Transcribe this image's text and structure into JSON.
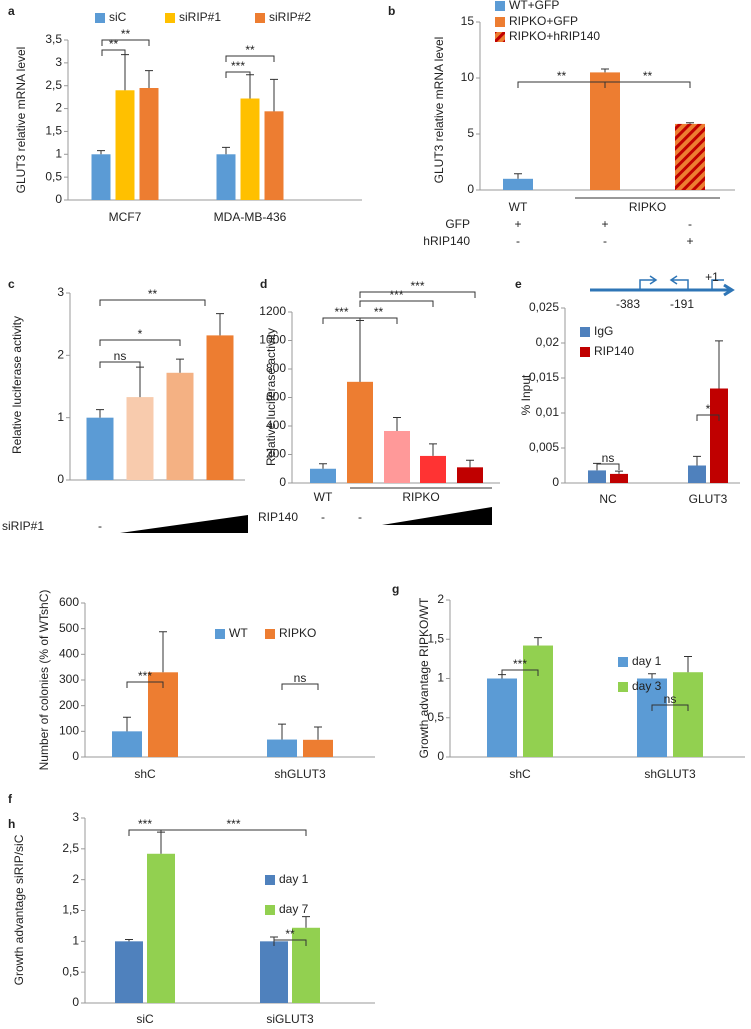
{
  "chart_data": [
    {
      "type": "bar",
      "panel": "a",
      "ylabel": "GLUT3 relative mRNA level",
      "categories": [
        "MCF7",
        "MDA-MB-436"
      ],
      "series": [
        {
          "name": "siC",
          "color": "#5b9bd5",
          "values": [
            1.0,
            1.0
          ],
          "errors": [
            0.08,
            0.15
          ]
        },
        {
          "name": "siRIP#1",
          "color": "#ffc000",
          "values": [
            2.4,
            2.22
          ],
          "errors": [
            0.78,
            0.52
          ]
        },
        {
          "name": "siRIP#2",
          "color": "#ed7d31",
          "values": [
            2.45,
            1.94
          ],
          "errors": [
            0.38,
            0.7
          ]
        }
      ],
      "ylim": [
        0,
        3.5
      ],
      "yticks": [
        0,
        {
          "value": 0.5,
          "label": "0,5"
        },
        1,
        {
          "value": 1.5,
          "label": "1,5"
        },
        2,
        {
          "value": 2.5,
          "label": "2,5"
        },
        3,
        {
          "value": 3.5,
          "label": "3,5"
        }
      ],
      "annotations": [
        "**",
        "**",
        "***",
        "**"
      ]
    },
    {
      "type": "bar",
      "panel": "b",
      "ylabel": "GLUT3 relative mRNA level",
      "categories": [
        "WT",
        null,
        null
      ],
      "group_labels": [
        "RIPKO"
      ],
      "values": [
        1.0,
        10.5,
        5.9
      ],
      "errors": [
        0.45,
        0.3,
        0.1
      ],
      "colors": [
        "#5b9bd5",
        "#ed7d31",
        "#ed7d31"
      ],
      "hatch": [
        false,
        false,
        true
      ],
      "legend": [
        "WT+GFP",
        "RIPKO+GFP",
        "RIPKO+hRIP140"
      ],
      "rows": [
        {
          "name": "GFP",
          "values": [
            "+",
            "+",
            "-"
          ]
        },
        {
          "name": "hRIP140",
          "values": [
            "-",
            "-",
            "+"
          ]
        }
      ],
      "ylim": [
        0,
        15
      ],
      "yticks": [
        0,
        5,
        10,
        15
      ],
      "annotations": [
        "**",
        "**"
      ]
    },
    {
      "type": "bar",
      "panel": "c",
      "ylabel": "Relative luciferase activity",
      "values": [
        1.0,
        1.33,
        1.72,
        2.32
      ],
      "errors": [
        0.13,
        0.48,
        0.22,
        0.35
      ],
      "colors": [
        "#5b9bd5",
        "#f8cbad",
        "#f4b183",
        "#ed7d31"
      ],
      "rows": [
        {
          "name": "siRIP#1",
          "values": [
            "-",
            null,
            null,
            null
          ]
        }
      ],
      "ylim": [
        0,
        3
      ],
      "yticks": [
        0,
        1,
        2,
        3
      ],
      "annotations": [
        "**",
        "*",
        "ns"
      ]
    },
    {
      "type": "bar",
      "panel": "d",
      "ylabel": "Relative luciferase activity",
      "categories": [
        "WT",
        null,
        null,
        null,
        null
      ],
      "group_labels": [
        "RIPKO"
      ],
      "values": [
        100,
        710,
        365,
        190,
        110
      ],
      "errors": [
        35,
        430,
        95,
        85,
        50
      ],
      "colors": [
        "#5b9bd5",
        "#ed7d31",
        "#ff9999",
        "#ff3333",
        "#c00000"
      ],
      "rows": [
        {
          "name": "RIP140",
          "values": [
            "-",
            "-",
            null,
            null,
            null
          ]
        }
      ],
      "ylim": [
        0,
        1200
      ],
      "yticks": [
        0,
        200,
        400,
        600,
        800,
        1000,
        1200
      ],
      "annotations": [
        "***",
        "**",
        "***",
        "***"
      ]
    },
    {
      "type": "bar",
      "panel": "e",
      "ylabel": "% Input",
      "categories": [
        "NC",
        "GLUT3"
      ],
      "series": [
        {
          "name": "IgG",
          "color": "#4f81bd",
          "values": [
            0.0018,
            0.0025
          ],
          "errors": [
            0.001,
            0.0013
          ]
        },
        {
          "name": "RIP140",
          "color": "#c00000",
          "values": [
            0.0013,
            0.0135
          ],
          "errors": [
            0.0004,
            0.0068
          ]
        }
      ],
      "ylim": [
        0,
        0.025
      ],
      "yticks": [
        0,
        {
          "value": 0.005,
          "label": "0,005"
        },
        {
          "value": 0.01,
          "label": "0,01"
        },
        {
          "value": 0.015,
          "label": "0,015"
        },
        {
          "value": 0.02,
          "label": "0,02"
        },
        {
          "value": 0.025,
          "label": "0,025"
        }
      ],
      "promoter_labels": [
        "-383",
        "-191",
        "+1"
      ],
      "annotations": [
        "ns",
        "*"
      ]
    },
    {
      "type": "bar",
      "panel": "f",
      "ylabel": "Number of colonies (% of WTshC)",
      "categories": [
        "shC",
        "shGLUT3"
      ],
      "series": [
        {
          "name": "WT",
          "color": "#5b9bd5",
          "values": [
            100,
            68
          ],
          "errors": [
            55,
            60
          ]
        },
        {
          "name": "RIPKO",
          "color": "#ed7d31",
          "values": [
            330,
            67
          ],
          "errors": [
            158,
            50
          ]
        }
      ],
      "ylim": [
        0,
        600
      ],
      "yticks": [
        0,
        100,
        200,
        300,
        400,
        500,
        600
      ],
      "annotations": [
        "***",
        "ns"
      ]
    },
    {
      "type": "bar",
      "panel": "g",
      "ylabel": "Growth advantage RIPKO/WT",
      "categories": [
        "shC",
        "shGLUT3"
      ],
      "series": [
        {
          "name": "day 1",
          "color": "#5b9bd5",
          "values": [
            1.0,
            1.0
          ],
          "errors": [
            0.05,
            0.06
          ]
        },
        {
          "name": "day 3",
          "color": "#92d050",
          "values": [
            1.42,
            1.08
          ],
          "errors": [
            0.1,
            0.2
          ]
        }
      ],
      "ylim": [
        0,
        2
      ],
      "yticks": [
        0,
        {
          "value": 0.5,
          "label": "0,5"
        },
        1,
        {
          "value": 1.5,
          "label": "1,5"
        },
        2
      ],
      "annotations": [
        "***",
        "ns"
      ]
    },
    {
      "type": "bar",
      "panel": "h",
      "ylabel": "Growth advantage siRIP/siC",
      "categories": [
        "siC",
        "siGLUT3"
      ],
      "series": [
        {
          "name": "day 1",
          "color": "#4f81bd",
          "values": [
            1.0,
            1.0
          ],
          "errors": [
            0.03,
            0.07
          ]
        },
        {
          "name": "day 7",
          "color": "#92d050",
          "values": [
            2.42,
            1.22
          ],
          "errors": [
            0.35,
            0.18
          ]
        }
      ],
      "ylim": [
        0,
        3
      ],
      "yticks": [
        0,
        {
          "value": 0.5,
          "label": "0,5"
        },
        1,
        {
          "value": 1.5,
          "label": "1,5"
        },
        2,
        {
          "value": 2.5,
          "label": "2,5"
        },
        3
      ],
      "annotations": [
        "***",
        "***",
        "**"
      ]
    }
  ]
}
